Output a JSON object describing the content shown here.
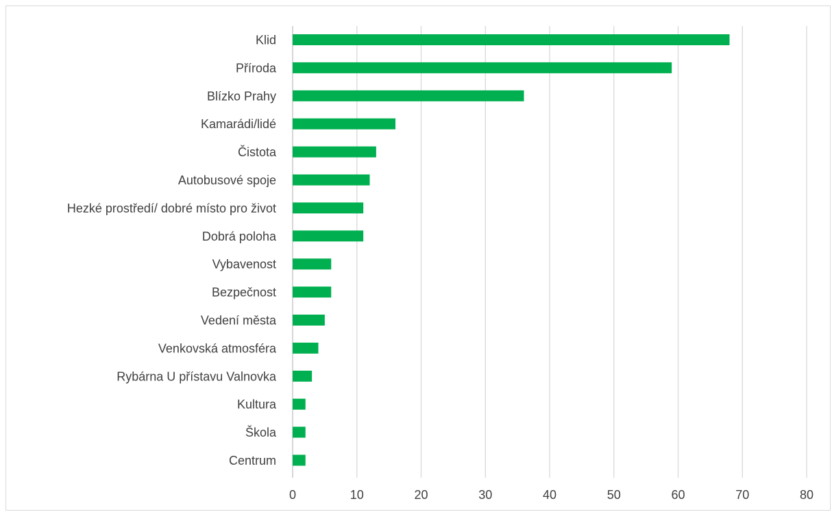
{
  "chart_data": {
    "type": "bar",
    "orientation": "horizontal",
    "categories": [
      "Klid",
      "Příroda",
      "Blízko Prahy",
      "Kamarádi/lidé",
      "Čistota",
      "Autobusové spoje",
      "Hezké prostředí/ dobré místo pro život",
      "Dobrá poloha",
      "Vybavenost",
      "Bezpečnost",
      "Vedení města",
      "Venkovská atmosféra",
      "Rybárna U přístavu Valnovka",
      "Kultura",
      "Škola",
      "Centrum"
    ],
    "values": [
      68,
      59,
      36,
      16,
      13,
      12,
      11,
      11,
      6,
      6,
      5,
      4,
      3,
      2,
      2,
      2
    ],
    "xlim": [
      0,
      80
    ],
    "xticks": [
      "0",
      "10",
      "20",
      "30",
      "40",
      "50",
      "60",
      "70",
      "80"
    ],
    "bar_color": "#00b050",
    "grid": true,
    "legend": "none"
  }
}
